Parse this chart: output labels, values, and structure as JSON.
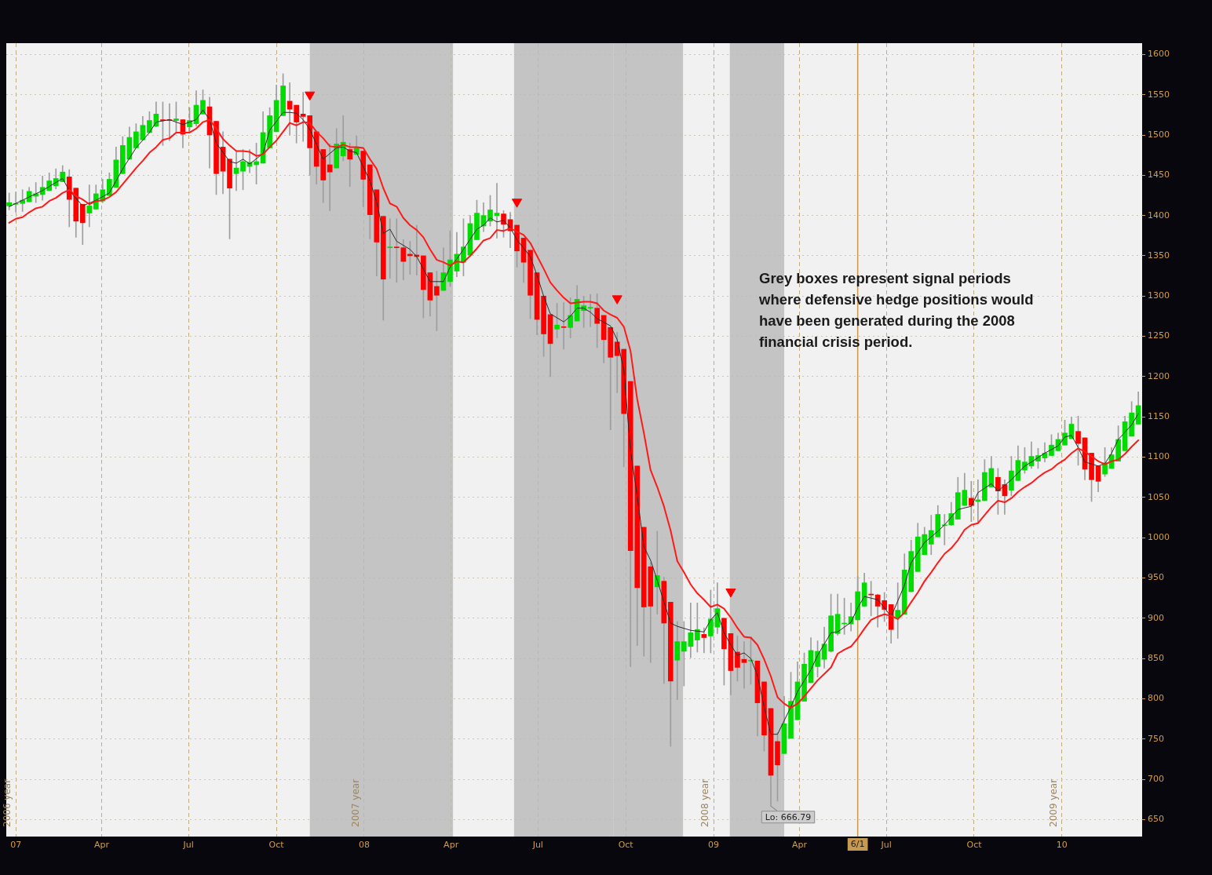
{
  "chart_data": {
    "type": "candlestick",
    "x": [
      "2006-12-25",
      "2007-01-01",
      "2007-01-08",
      "2007-01-15",
      "2007-01-22",
      "2007-01-29",
      "2007-02-05",
      "2007-02-12",
      "2007-02-19",
      "2007-02-26",
      "2007-03-05",
      "2007-03-12",
      "2007-03-19",
      "2007-03-26",
      "2007-04-02",
      "2007-04-09",
      "2007-04-16",
      "2007-04-23",
      "2007-04-30",
      "2007-05-07",
      "2007-05-14",
      "2007-05-21",
      "2007-05-28",
      "2007-06-04",
      "2007-06-11",
      "2007-06-18",
      "2007-06-25",
      "2007-07-02",
      "2007-07-09",
      "2007-07-16",
      "2007-07-23",
      "2007-07-30",
      "2007-08-06",
      "2007-08-13",
      "2007-08-20",
      "2007-08-27",
      "2007-09-03",
      "2007-09-10",
      "2007-09-17",
      "2007-09-24",
      "2007-10-01",
      "2007-10-08",
      "2007-10-15",
      "2007-10-22",
      "2007-10-29",
      "2007-11-05",
      "2007-11-12",
      "2007-11-19",
      "2007-11-26",
      "2007-12-03",
      "2007-12-10",
      "2007-12-17",
      "2007-12-24",
      "2007-12-31",
      "2008-01-07",
      "2008-01-14",
      "2008-01-21",
      "2008-01-28",
      "2008-02-04",
      "2008-02-11",
      "2008-02-18",
      "2008-02-25",
      "2008-03-03",
      "2008-03-10",
      "2008-03-17",
      "2008-03-24",
      "2008-03-31",
      "2008-04-07",
      "2008-04-14",
      "2008-04-21",
      "2008-04-28",
      "2008-05-05",
      "2008-05-12",
      "2008-05-19",
      "2008-05-26",
      "2008-06-02",
      "2008-06-09",
      "2008-06-16",
      "2008-06-23",
      "2008-06-30",
      "2008-07-07",
      "2008-07-14",
      "2008-07-21",
      "2008-07-28",
      "2008-08-04",
      "2008-08-11",
      "2008-08-18",
      "2008-08-25",
      "2008-09-01",
      "2008-09-08",
      "2008-09-15",
      "2008-09-22",
      "2008-09-29",
      "2008-10-06",
      "2008-10-13",
      "2008-10-20",
      "2008-10-27",
      "2008-11-03",
      "2008-11-10",
      "2008-11-17",
      "2008-11-24",
      "2008-12-01",
      "2008-12-08",
      "2008-12-15",
      "2008-12-22",
      "2008-12-29",
      "2009-01-05",
      "2009-01-12",
      "2009-01-19",
      "2009-01-26",
      "2009-02-02",
      "2009-02-09",
      "2009-02-16",
      "2009-02-23",
      "2009-03-02",
      "2009-03-09",
      "2009-03-16",
      "2009-03-23",
      "2009-03-30",
      "2009-04-06",
      "2009-04-13",
      "2009-04-20",
      "2009-04-27",
      "2009-05-04",
      "2009-05-11",
      "2009-05-18",
      "2009-05-25",
      "2009-06-01",
      "2009-06-08",
      "2009-06-15",
      "2009-06-22",
      "2009-06-29",
      "2009-07-06",
      "2009-07-13",
      "2009-07-20",
      "2009-07-27",
      "2009-08-03",
      "2009-08-10",
      "2009-08-17",
      "2009-08-24",
      "2009-08-31",
      "2009-09-07",
      "2009-09-14",
      "2009-09-21",
      "2009-09-28",
      "2009-10-05",
      "2009-10-12",
      "2009-10-19",
      "2009-10-26",
      "2009-11-02",
      "2009-11-09",
      "2009-11-16",
      "2009-11-23",
      "2009-11-30",
      "2009-12-07",
      "2009-12-14",
      "2009-12-21",
      "2009-12-28",
      "2010-01-04",
      "2010-01-11",
      "2010-01-18",
      "2010-01-25",
      "2010-02-01",
      "2010-02-08",
      "2010-02-15",
      "2010-02-22",
      "2010-03-01",
      "2010-03-08",
      "2010-03-15",
      "2010-03-22"
    ],
    "ohlc": [
      [
        1412,
        1428,
        1407,
        1416
      ],
      [
        1414,
        1429,
        1404,
        1415
      ],
      [
        1415,
        1432,
        1405,
        1419
      ],
      [
        1417,
        1435,
        1417,
        1430
      ],
      [
        1424,
        1441,
        1416,
        1427
      ],
      [
        1426,
        1449,
        1419,
        1435
      ],
      [
        1431,
        1453,
        1431,
        1443
      ],
      [
        1437,
        1458,
        1433,
        1446
      ],
      [
        1442,
        1462,
        1442,
        1454
      ],
      [
        1448,
        1457,
        1386,
        1420
      ],
      [
        1434,
        1434,
        1373,
        1393
      ],
      [
        1414,
        1414,
        1364,
        1391
      ],
      [
        1403,
        1438,
        1386,
        1412
      ],
      [
        1408,
        1438,
        1408,
        1427
      ],
      [
        1418,
        1445,
        1416,
        1432
      ],
      [
        1425,
        1453,
        1425,
        1445
      ],
      [
        1435,
        1485,
        1435,
        1469
      ],
      [
        1452,
        1498,
        1452,
        1487
      ],
      [
        1470,
        1510,
        1470,
        1497
      ],
      [
        1484,
        1514,
        1484,
        1504
      ],
      [
        1494,
        1523,
        1494,
        1512
      ],
      [
        1503,
        1529,
        1503,
        1518
      ],
      [
        1511,
        1541,
        1510,
        1526
      ],
      [
        1519,
        1541,
        1487,
        1518
      ],
      [
        1519,
        1539,
        1493,
        1518
      ],
      [
        1518,
        1541,
        1502,
        1520
      ],
      [
        1519,
        1519,
        1484,
        1501
      ],
      [
        1510,
        1534,
        1503,
        1518
      ],
      [
        1514,
        1555,
        1511,
        1537
      ],
      [
        1526,
        1556,
        1526,
        1543
      ],
      [
        1535,
        1547,
        1459,
        1500
      ],
      [
        1517,
        1517,
        1426,
        1452
      ],
      [
        1485,
        1504,
        1427,
        1455
      ],
      [
        1470,
        1470,
        1371,
        1434
      ],
      [
        1452,
        1479,
        1431,
        1459
      ],
      [
        1455,
        1482,
        1432,
        1467
      ],
      [
        1461,
        1482,
        1453,
        1466
      ],
      [
        1463,
        1490,
        1439,
        1467
      ],
      [
        1465,
        1529,
        1465,
        1503
      ],
      [
        1484,
        1534,
        1484,
        1524
      ],
      [
        1504,
        1562,
        1504,
        1543
      ],
      [
        1524,
        1576,
        1524,
        1561
      ],
      [
        1542,
        1565,
        1500,
        1532
      ],
      [
        1537,
        1537,
        1490,
        1516
      ],
      [
        1526,
        1553,
        1492,
        1523
      ],
      [
        1524,
        1524,
        1450,
        1484
      ],
      [
        1504,
        1504,
        1439,
        1461
      ],
      [
        1482,
        1482,
        1416,
        1444
      ],
      [
        1463,
        1489,
        1406,
        1454
      ],
      [
        1459,
        1508,
        1459,
        1489
      ],
      [
        1474,
        1524,
        1468,
        1491
      ],
      [
        1482,
        1490,
        1436,
        1470
      ],
      [
        1476,
        1499,
        1476,
        1484
      ],
      [
        1480,
        1480,
        1411,
        1445
      ],
      [
        1463,
        1463,
        1371,
        1401
      ],
      [
        1432,
        1432,
        1325,
        1367
      ],
      [
        1399,
        1399,
        1270,
        1321
      ],
      [
        1360,
        1396,
        1322,
        1361
      ],
      [
        1361,
        1396,
        1317,
        1360
      ],
      [
        1360,
        1370,
        1320,
        1343
      ],
      [
        1352,
        1368,
        1327,
        1350
      ],
      [
        1351,
        1388,
        1326,
        1349
      ],
      [
        1350,
        1350,
        1273,
        1308
      ],
      [
        1329,
        1329,
        1275,
        1295
      ],
      [
        1312,
        1331,
        1257,
        1301
      ],
      [
        1307,
        1360,
        1307,
        1329
      ],
      [
        1318,
        1381,
        1312,
        1345
      ],
      [
        1331,
        1379,
        1324,
        1352
      ],
      [
        1342,
        1396,
        1325,
        1361
      ],
      [
        1351,
        1400,
        1351,
        1390
      ],
      [
        1370,
        1419,
        1370,
        1403
      ],
      [
        1387,
        1416,
        1380,
        1400
      ],
      [
        1393,
        1425,
        1387,
        1407
      ],
      [
        1400,
        1440,
        1372,
        1403
      ],
      [
        1402,
        1406,
        1373,
        1389
      ],
      [
        1395,
        1404,
        1360,
        1381
      ],
      [
        1388,
        1388,
        1336,
        1356
      ],
      [
        1372,
        1372,
        1317,
        1342
      ],
      [
        1357,
        1357,
        1272,
        1301
      ],
      [
        1329,
        1329,
        1252,
        1271
      ],
      [
        1300,
        1300,
        1225,
        1253
      ],
      [
        1277,
        1277,
        1200,
        1241
      ],
      [
        1259,
        1291,
        1248,
        1264
      ],
      [
        1262,
        1292,
        1234,
        1261
      ],
      [
        1261,
        1298,
        1248,
        1276
      ],
      [
        1269,
        1313,
        1269,
        1296
      ],
      [
        1282,
        1300,
        1261,
        1288
      ],
      [
        1285,
        1302,
        1262,
        1285
      ],
      [
        1285,
        1303,
        1236,
        1266
      ],
      [
        1276,
        1276,
        1217,
        1246
      ],
      [
        1261,
        1261,
        1134,
        1224
      ],
      [
        1243,
        1255,
        1180,
        1226
      ],
      [
        1234,
        1234,
        1088,
        1154
      ],
      [
        1194,
        1194,
        840,
        984
      ],
      [
        1089,
        1089,
        866,
        938
      ],
      [
        1013,
        1013,
        853,
        914
      ],
      [
        964,
        969,
        845,
        915
      ],
      [
        939,
        1008,
        905,
        953
      ],
      [
        946,
        951,
        819,
        894
      ],
      [
        920,
        920,
        741,
        822
      ],
      [
        848,
        896,
        799,
        871
      ],
      [
        859,
        896,
        816,
        871
      ],
      [
        865,
        919,
        851,
        882
      ],
      [
        873,
        919,
        858,
        886
      ],
      [
        880,
        888,
        857,
        876
      ],
      [
        878,
        935,
        857,
        899
      ],
      [
        889,
        944,
        881,
        912
      ],
      [
        900,
        900,
        817,
        862
      ],
      [
        881,
        881,
        805,
        835
      ],
      [
        858,
        878,
        822,
        839
      ],
      [
        849,
        871,
        813,
        845
      ],
      [
        847,
        877,
        818,
        848
      ],
      [
        847,
        847,
        754,
        795
      ],
      [
        821,
        821,
        735,
        755
      ],
      [
        788,
        788,
        666.79,
        705
      ],
      [
        747,
        758,
        673,
        718
      ],
      [
        732,
        803,
        732,
        769
      ],
      [
        751,
        833,
        751,
        797
      ],
      [
        774,
        846,
        774,
        821
      ],
      [
        797,
        857,
        797,
        843
      ],
      [
        820,
        876,
        820,
        860
      ],
      [
        840,
        872,
        827,
        859
      ],
      [
        849,
        889,
        838,
        868
      ],
      [
        859,
        930,
        858,
        903
      ],
      [
        881,
        930,
        879,
        905
      ],
      [
        893,
        925,
        880,
        894
      ],
      [
        893,
        919,
        884,
        902
      ],
      [
        898,
        952,
        898,
        933
      ],
      [
        915,
        956,
        915,
        944
      ],
      [
        930,
        946,
        903,
        929
      ],
      [
        929,
        930,
        889,
        915
      ],
      [
        922,
        932,
        896,
        911
      ],
      [
        917,
        917,
        869,
        886
      ],
      [
        901,
        944,
        875,
        910
      ],
      [
        905,
        980,
        905,
        960
      ],
      [
        933,
        997,
        933,
        983
      ],
      [
        958,
        1018,
        958,
        1001
      ],
      [
        979,
        1013,
        979,
        1004
      ],
      [
        992,
        1028,
        979,
        1009
      ],
      [
        1001,
        1040,
        1001,
        1029
      ],
      [
        1015,
        1029,
        991,
        1016
      ],
      [
        1016,
        1044,
        1015,
        1030
      ],
      [
        1023,
        1075,
        1023,
        1056
      ],
      [
        1040,
        1080,
        1040,
        1059
      ],
      [
        1049,
        1070,
        1020,
        1040
      ],
      [
        1045,
        1072,
        1018,
        1047
      ],
      [
        1046,
        1097,
        1046,
        1081
      ],
      [
        1063,
        1101,
        1063,
        1086
      ],
      [
        1075,
        1086,
        1029,
        1058
      ],
      [
        1066,
        1072,
        1029,
        1052
      ],
      [
        1059,
        1101,
        1052,
        1083
      ],
      [
        1071,
        1114,
        1071,
        1096
      ],
      [
        1084,
        1112,
        1080,
        1094
      ],
      [
        1089,
        1119,
        1086,
        1101
      ],
      [
        1095,
        1111,
        1086,
        1102
      ],
      [
        1099,
        1118,
        1094,
        1105
      ],
      [
        1102,
        1128,
        1102,
        1115
      ],
      [
        1108,
        1130,
        1108,
        1122
      ],
      [
        1115,
        1146,
        1115,
        1130
      ],
      [
        1123,
        1150,
        1123,
        1141
      ],
      [
        1132,
        1151,
        1090,
        1117
      ],
      [
        1124,
        1124,
        1072,
        1085
      ],
      [
        1105,
        1105,
        1045,
        1072
      ],
      [
        1089,
        1089,
        1057,
        1070
      ],
      [
        1079,
        1112,
        1076,
        1093
      ],
      [
        1086,
        1112,
        1086,
        1103
      ],
      [
        1095,
        1139,
        1095,
        1122
      ],
      [
        1108,
        1151,
        1108,
        1144
      ],
      [
        1126,
        1169,
        1126,
        1155
      ],
      [
        1141,
        1181,
        1141,
        1164
      ]
    ],
    "series": [
      {
        "type": "line",
        "color": "#ff1a1a",
        "values": [
          1391,
          1396,
          1398,
          1404,
          1409,
          1411,
          1418,
          1422,
          1428,
          1432,
          1424,
          1420,
          1414,
          1418,
          1419,
          1423,
          1429,
          1439,
          1449,
          1459,
          1468,
          1478,
          1485,
          1494,
          1496,
          1503,
          1503,
          1503,
          1508,
          1516,
          1519,
          1508,
          1495,
          1487,
          1480,
          1480,
          1479,
          1474,
          1476,
          1485,
          1493,
          1504,
          1515,
          1512,
          1516,
          1515,
          1504,
          1496,
          1486,
          1485,
          1488,
          1485,
          1485,
          1484,
          1470,
          1458,
          1434,
          1415,
          1411,
          1397,
          1388,
          1382,
          1373,
          1358,
          1345,
          1342,
          1338,
          1343,
          1342,
          1350,
          1359,
          1369,
          1372,
          1382,
          1381,
          1384,
          1380,
          1376,
          1366,
          1350,
          1334,
          1317,
          1307,
          1298,
          1291,
          1292,
          1293,
          1293,
          1291,
          1282,
          1277,
          1273,
          1262,
          1232,
          1172,
          1130,
          1084,
          1063,
          1039,
          1009,
          971,
          957,
          942,
          931,
          923,
          914,
          917,
          912,
          901,
          888,
          877,
          876,
          867,
          849,
          828,
          802,
          794,
          789,
          794,
          803,
          813,
          823,
          831,
          839,
          856,
          861,
          865,
          875,
          887,
          898,
          902,
          905,
          903,
          899,
          907,
          920,
          932,
          946,
          957,
          969,
          980,
          987,
          997,
          1010,
          1016,
          1018,
          1028,
          1038,
          1046,
          1044,
          1049,
          1057,
          1063,
          1068,
          1075,
          1081,
          1085,
          1092,
          1097,
          1105,
          1111,
          1107,
          1101,
          1095,
          1091,
          1095,
          1097,
          1104,
          1113,
          1121
        ]
      },
      {
        "type": "line",
        "color": "#2a2a2a",
        "x": [
          "2006-12-25",
          "2007-01-08",
          "2007-01-29",
          "2007-02-19",
          "2007-02-26",
          "2007-03-12",
          "2007-03-26",
          "2007-04-09",
          "2007-04-23",
          "2007-05-07",
          "2007-05-21",
          "2007-05-28",
          "2007-06-11",
          "2007-06-25",
          "2007-07-09",
          "2007-07-16",
          "2007-07-23",
          "2007-07-30",
          "2007-08-13",
          "2007-08-20",
          "2007-08-27",
          "2007-09-03",
          "2007-09-17",
          "2007-09-24",
          "2007-10-08",
          "2007-10-15",
          "2007-10-22",
          "2007-10-29",
          "2007-11-05",
          "2007-11-19",
          "2007-12-03",
          "2007-12-10",
          "2007-12-17",
          "2007-12-24",
          "2008-01-07",
          "2008-01-14",
          "2008-01-21",
          "2008-01-28",
          "2008-02-04",
          "2008-02-18",
          "2008-02-25",
          "2008-03-10",
          "2008-03-24",
          "2008-03-31",
          "2008-04-07",
          "2008-04-14",
          "2008-04-28",
          "2008-05-05",
          "2008-05-12",
          "2008-05-19",
          "2008-05-26",
          "2008-06-02",
          "2008-06-09",
          "2008-06-23",
          "2008-06-30",
          "2008-07-07",
          "2008-07-14",
          "2008-07-28",
          "2008-08-04",
          "2008-08-11",
          "2008-08-18",
          "2008-08-25",
          "2008-09-01",
          "2008-09-15",
          "2008-09-22",
          "2008-09-29",
          "2008-10-06",
          "2008-10-13",
          "2008-10-20",
          "2008-10-27",
          "2008-11-03",
          "2008-11-17",
          "2008-11-24",
          "2008-12-08",
          "2008-12-22",
          "2008-12-29",
          "2009-01-05",
          "2009-01-12",
          "2009-01-19",
          "2009-01-26",
          "2009-02-02",
          "2009-02-09",
          "2009-02-16",
          "2009-02-23",
          "2009-03-02",
          "2009-03-09",
          "2009-03-23",
          "2009-03-30",
          "2009-04-13",
          "2009-04-20",
          "2009-05-04",
          "2009-05-11",
          "2009-05-25",
          "2009-06-01",
          "2009-06-08",
          "2009-06-22",
          "2009-06-29",
          "2009-07-06",
          "2009-07-20",
          "2009-07-27",
          "2009-08-10",
          "2009-08-24",
          "2009-08-31",
          "2009-09-14",
          "2009-09-28",
          "2009-10-05",
          "2009-10-19",
          "2009-10-26",
          "2009-11-09",
          "2009-11-23",
          "2009-11-30",
          "2009-12-14",
          "2009-12-28",
          "2010-01-04",
          "2010-01-11",
          "2010-01-18",
          "2010-01-25",
          "2010-02-08",
          "2010-02-15",
          "2010-02-22",
          "2010-03-01",
          "2010-03-15",
          "2010-03-22"
        ],
        "values": [
          1411,
          1419,
          1431,
          1446,
          1431,
          1412,
          1419,
          1428,
          1458,
          1484,
          1503,
          1516,
          1519,
          1513,
          1519,
          1531,
          1519,
          1490,
          1467,
          1465,
          1470,
          1464,
          1477,
          1506,
          1528,
          1528,
          1527,
          1519,
          1507,
          1470,
          1484,
          1485,
          1480,
          1478,
          1443,
          1417,
          1378,
          1383,
          1368,
          1358,
          1349,
          1318,
          1318,
          1336,
          1346,
          1358,
          1383,
          1388,
          1397,
          1392,
          1394,
          1385,
          1370,
          1349,
          1326,
          1300,
          1278,
          1268,
          1275,
          1285,
          1285,
          1280,
          1272,
          1263,
          1246,
          1208,
          1108,
          1052,
          989,
          972,
          947,
          894,
          890,
          885,
          883,
          898,
          907,
          882,
          867,
          854,
          857,
          850,
          829,
          790,
          756,
          756,
          790,
          809,
          836,
          854,
          882,
          883,
          895,
          913,
          927,
          923,
          913,
          902,
          941,
          969,
          994,
          1008,
          1016,
          1035,
          1039,
          1056,
          1067,
          1058,
          1072,
          1089,
          1094,
          1105,
          1114,
          1125,
          1127,
          1112,
          1094,
          1089,
          1092,
          1105,
          1122,
          1140,
          1154
        ]
      },
      {
        "type": "scatter",
        "color": "#ff0000",
        "marker": "triangle",
        "x": [
          "2007-11-05",
          "2008-06-09",
          "2008-09-22",
          "2009-01-19"
        ],
        "values": [
          1550,
          1417,
          1297,
          933
        ]
      }
    ],
    "xlim": [
      "2006-12-22",
      "2010-03-26"
    ],
    "ylim": [
      629,
      1614
    ],
    "xticks": [
      {
        "value": "2007-01-01",
        "label": "07"
      },
      {
        "value": "2007-04-01",
        "label": "Apr"
      },
      {
        "value": "2007-07-01",
        "label": "Jul"
      },
      {
        "value": "2007-10-01",
        "label": "Oct"
      },
      {
        "value": "2008-01-01",
        "label": "08"
      },
      {
        "value": "2008-04-01",
        "label": "Apr"
      },
      {
        "value": "2008-07-01",
        "label": "Jul"
      },
      {
        "value": "2008-10-01",
        "label": "Oct"
      },
      {
        "value": "2009-01-01",
        "label": "09"
      },
      {
        "value": "2009-04-01",
        "label": "Apr"
      },
      {
        "value": "2009-07-01",
        "label": "Jul"
      },
      {
        "value": "2009-10-01",
        "label": "Oct"
      },
      {
        "value": "2010-01-01",
        "label": "10"
      }
    ],
    "yticks": [
      650,
      700,
      750,
      800,
      850,
      900,
      950,
      1000,
      1050,
      1100,
      1150,
      1200,
      1250,
      1300,
      1350,
      1400,
      1450,
      1500,
      1550,
      1600
    ],
    "grid": true,
    "bands": [
      {
        "axis": "x",
        "from": "2007-11-05",
        "to": "2008-04-03",
        "color": "#b9b9b9"
      },
      {
        "axis": "x",
        "from": "2008-06-06",
        "to": "2008-09-18",
        "color": "#b9b9b9"
      },
      {
        "axis": "x",
        "from": "2008-09-18",
        "to": "2008-11-30",
        "color": "#b9b9b9"
      },
      {
        "axis": "x",
        "from": "2009-01-18",
        "to": "2009-03-16",
        "color": "#b9b9b9"
      }
    ],
    "ref_lines": [
      {
        "axis": "x",
        "value": "2009-06-01",
        "label": "6/1",
        "color": "#c79a52",
        "line_style": "solid"
      }
    ],
    "annotations": [
      "Grey boxes represent signal periods where defensive hedge positions would have been generated during the 2008 financial crisis period.",
      {
        "text": "Lo: 666.79",
        "x": "2009-03-02",
        "y": 666.79
      },
      "2006 year",
      "2007 year",
      "2008 year",
      "2009 year"
    ]
  }
}
